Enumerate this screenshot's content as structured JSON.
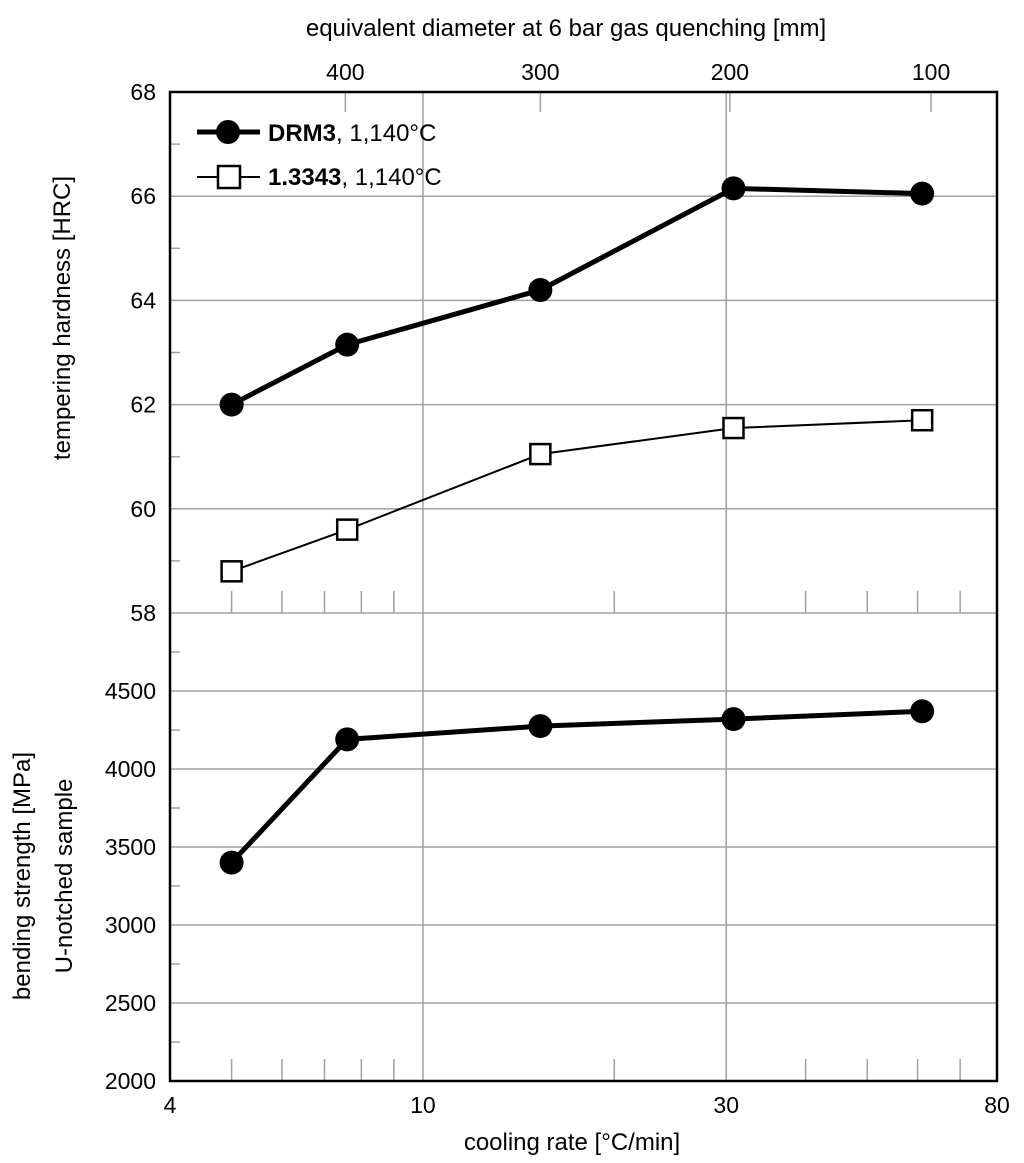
{
  "chart_data": [
    {
      "type": "line",
      "panel": "upper",
      "top_xlabel": "equivalent diameter at 6 bar gas quenching [mm]",
      "top_ticks": [
        {
          "label": "400",
          "cooling_rate": 7.55
        },
        {
          "label": "300",
          "cooling_rate": 15.3
        },
        {
          "label": "200",
          "cooling_rate": 30.4
        },
        {
          "label": "100",
          "cooling_rate": 63
        }
      ],
      "ylabel": "tempering hardness [HRC]",
      "ylim": [
        58,
        68
      ],
      "yticks": [
        "58",
        "60",
        "62",
        "64",
        "66",
        "68"
      ],
      "x_scale": "log",
      "legend_placement": "top-left",
      "series": [
        {
          "name": "DRM3",
          "name_suffix": ",  1,140°C",
          "marker": "filled-circle",
          "line": "thick",
          "color": "#000000",
          "x": [
            5,
            7.6,
            15.3,
            30.8,
            61
          ],
          "y": [
            62.0,
            63.15,
            64.2,
            66.15,
            66.05
          ]
        },
        {
          "name": "1.3343",
          "name_suffix": ", 1,140°C",
          "marker": "open-square",
          "line": "thin",
          "color": "#000000",
          "x": [
            5,
            7.6,
            15.3,
            30.8,
            61
          ],
          "y": [
            58.8,
            59.6,
            61.05,
            61.55,
            61.7
          ]
        }
      ]
    },
    {
      "type": "line",
      "panel": "lower",
      "ylabel_line1": "bending strength [MPa]",
      "ylabel_line2": "U-notched sample",
      "ylim": [
        2000,
        5000
      ],
      "yticks": [
        "2000",
        "2500",
        "3000",
        "3500",
        "4000",
        "4500"
      ],
      "xlabel": "cooling rate [°C/min]",
      "xlim": [
        4,
        80
      ],
      "x_scale": "log",
      "xticks": [
        "4",
        "10",
        "30",
        "80"
      ],
      "grid": true,
      "series": [
        {
          "marker": "filled-circle",
          "line": "thick",
          "color": "#000000",
          "x": [
            5,
            7.6,
            15.3,
            30.8,
            61
          ],
          "y": [
            3400,
            4190,
            4275,
            4320,
            4370
          ]
        }
      ]
    }
  ],
  "colors": {
    "grid": "#a0a0a0",
    "axis": "#000000"
  }
}
